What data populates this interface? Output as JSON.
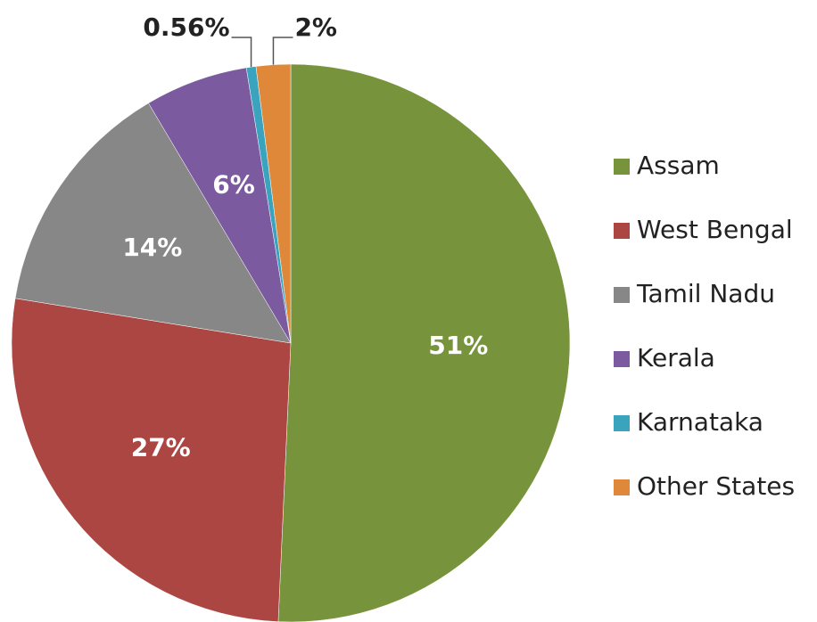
{
  "chart_data": {
    "type": "pie",
    "categories": [
      "Assam",
      "West Bengal",
      "Tamil Nadu",
      "Kerala",
      "Karnataka",
      "Other States"
    ],
    "values": [
      51,
      27,
      14,
      6,
      0.56,
      2
    ],
    "value_labels": [
      "51%",
      "27%",
      "14%",
      "6%",
      "0.56%",
      "2%"
    ],
    "colors": [
      "#77933c",
      "#ab4643",
      "#878787",
      "#7b5aa0",
      "#3aa3bd",
      "#e0883a"
    ],
    "legend": "right"
  }
}
